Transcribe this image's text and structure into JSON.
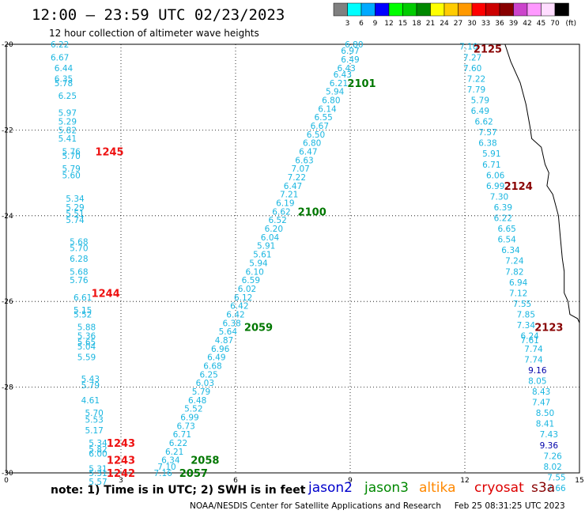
{
  "header": {
    "title": "12:00 — 23:59 UTC 02/23/2023",
    "subtitle": "12 hour collection of altimeter wave heights"
  },
  "colorbar": {
    "unit": "(ft)",
    "ticks": [
      "3",
      "6",
      "9",
      "12",
      "15",
      "18",
      "21",
      "24",
      "27",
      "30",
      "33",
      "36",
      "39",
      "42",
      "45",
      "70"
    ],
    "colors": [
      "#808080",
      "#00ffff",
      "#00aaff",
      "#0000ff",
      "#00ff00",
      "#00cc00",
      "#008800",
      "#ffff00",
      "#ffcc00",
      "#ff9900",
      "#ff0000",
      "#cc0000",
      "#880000",
      "#cc44cc",
      "#ff99ff",
      "#ffddff",
      "#000000"
    ]
  },
  "legend": {
    "note": "note:  1)  Time is in UTC;  2)  SWH is in feet",
    "satellites": [
      {
        "name": "jason2",
        "color": "#0000cc"
      },
      {
        "name": "jason3",
        "color": "#008800"
      },
      {
        "name": "altika",
        "color": "#ff8800"
      },
      {
        "name": "cryosat",
        "color": "#dd0000"
      },
      {
        "name": "s3a",
        "color": "#880000"
      }
    ]
  },
  "footer": {
    "credit": "NOAA/NESDIS Center for Satellite Applications and Research",
    "timestamp": "Feb 25 08:31:25 UTC 2023"
  },
  "chart_data": {
    "type": "scatter",
    "xlim": [
      0,
      15
    ],
    "ylim": [
      -30,
      -20
    ],
    "x_ticks": [
      "0",
      "3",
      "6",
      "9",
      "12",
      "15"
    ],
    "y_ticks": [
      "-20",
      "-22",
      "-24",
      "-26",
      "-28",
      "-30"
    ],
    "grid": true,
    "series": [
      {
        "name": "cryosat",
        "label_color": "#ee1111",
        "passes": [
          {
            "x": 2.7,
            "y": -22.5,
            "time": "1245"
          },
          {
            "x": 2.6,
            "y": -25.8,
            "time": "1244"
          },
          {
            "x": 3.0,
            "y": -29.3,
            "time": "1243"
          },
          {
            "x": 3.0,
            "y": -29.7,
            "time": "1243"
          },
          {
            "x": 3.0,
            "y": -30.0,
            "time": "1242"
          }
        ],
        "points": [
          {
            "x": 1.4,
            "y": -20.0,
            "v": "6.22"
          },
          {
            "x": 1.4,
            "y": -20.3,
            "v": "6.67"
          },
          {
            "x": 1.5,
            "y": -20.55,
            "v": "6.44"
          },
          {
            "x": 1.5,
            "y": -20.8,
            "v": "6.35"
          },
          {
            "x": 1.5,
            "y": -20.9,
            "v": "5.78"
          },
          {
            "x": 1.6,
            "y": -21.2,
            "v": "6.25"
          },
          {
            "x": 1.6,
            "y": -21.6,
            "v": "5.97"
          },
          {
            "x": 1.6,
            "y": -21.8,
            "v": "5.29"
          },
          {
            "x": 1.6,
            "y": -22.0,
            "v": "5.82"
          },
          {
            "x": 1.6,
            "y": -22.2,
            "v": "5.41"
          },
          {
            "x": 1.7,
            "y": -22.5,
            "v": "5.76"
          },
          {
            "x": 1.7,
            "y": -22.6,
            "v": "5.70"
          },
          {
            "x": 1.7,
            "y": -22.9,
            "v": "5.79"
          },
          {
            "x": 1.7,
            "y": -23.05,
            "v": "5.60"
          },
          {
            "x": 1.8,
            "y": -23.6,
            "v": "5.34"
          },
          {
            "x": 1.8,
            "y": -23.8,
            "v": "5.29"
          },
          {
            "x": 1.8,
            "y": -23.95,
            "v": "5.51"
          },
          {
            "x": 1.8,
            "y": -24.1,
            "v": "5.74"
          },
          {
            "x": 1.9,
            "y": -24.6,
            "v": "5.68"
          },
          {
            "x": 1.9,
            "y": -24.75,
            "v": "5.70"
          },
          {
            "x": 1.9,
            "y": -25.0,
            "v": "6.28"
          },
          {
            "x": 1.9,
            "y": -25.3,
            "v": "5.68"
          },
          {
            "x": 1.9,
            "y": -25.5,
            "v": "5.76"
          },
          {
            "x": 2.0,
            "y": -25.9,
            "v": "6.61"
          },
          {
            "x": 2.0,
            "y": -26.2,
            "v": "5.15"
          },
          {
            "x": 2.0,
            "y": -26.3,
            "v": "5.52"
          },
          {
            "x": 2.1,
            "y": -26.6,
            "v": "5.88"
          },
          {
            "x": 2.1,
            "y": -26.8,
            "v": "5.36"
          },
          {
            "x": 2.1,
            "y": -26.95,
            "v": "5.65"
          },
          {
            "x": 2.1,
            "y": -27.05,
            "v": "5.04"
          },
          {
            "x": 2.1,
            "y": -27.3,
            "v": "5.59"
          },
          {
            "x": 2.2,
            "y": -27.8,
            "v": "5.43"
          },
          {
            "x": 2.2,
            "y": -27.95,
            "v": "5.79"
          },
          {
            "x": 2.2,
            "y": -28.3,
            "v": "4.61"
          },
          {
            "x": 2.3,
            "y": -28.6,
            "v": "5.70"
          },
          {
            "x": 2.3,
            "y": -28.75,
            "v": "5.53"
          },
          {
            "x": 2.3,
            "y": -29.0,
            "v": "5.17"
          },
          {
            "x": 2.4,
            "y": -29.3,
            "v": "5.34"
          },
          {
            "x": 2.4,
            "y": -29.45,
            "v": "5.82"
          },
          {
            "x": 2.4,
            "y": -29.55,
            "v": "6.00"
          },
          {
            "x": 2.4,
            "y": -29.9,
            "v": "5.31"
          },
          {
            "x": 2.4,
            "y": -30.0,
            "v": "5.31"
          },
          {
            "x": 2.4,
            "y": -30.2,
            "v": "5.57"
          }
        ]
      },
      {
        "name": "jason3",
        "label_color": "#007700",
        "passes": [
          {
            "x": 9.3,
            "y": -20.9,
            "time": "2101"
          },
          {
            "x": 8.0,
            "y": -23.9,
            "time": "2100"
          },
          {
            "x": 6.6,
            "y": -26.6,
            "time": "2059"
          },
          {
            "x": 5.2,
            "y": -29.7,
            "time": "2058"
          },
          {
            "x": 4.9,
            "y": -30.0,
            "time": "2057"
          }
        ],
        "points": [
          {
            "x": 9.1,
            "y": -20.0,
            "v": "6.80"
          },
          {
            "x": 9.0,
            "y": -20.15,
            "v": "6.97"
          },
          {
            "x": 9.0,
            "y": -20.35,
            "v": "6.49"
          },
          {
            "x": 8.9,
            "y": -20.55,
            "v": "6.43"
          },
          {
            "x": 8.8,
            "y": -20.7,
            "v": "6.43"
          },
          {
            "x": 8.7,
            "y": -20.9,
            "v": "6.21"
          },
          {
            "x": 8.6,
            "y": -21.1,
            "v": "5.94"
          },
          {
            "x": 8.5,
            "y": -21.3,
            "v": "6.80"
          },
          {
            "x": 8.4,
            "y": -21.5,
            "v": "6.14"
          },
          {
            "x": 8.3,
            "y": -21.7,
            "v": "6.55"
          },
          {
            "x": 8.2,
            "y": -21.9,
            "v": "6.67"
          },
          {
            "x": 8.1,
            "y": -22.1,
            "v": "6.50"
          },
          {
            "x": 8.0,
            "y": -22.3,
            "v": "6.80"
          },
          {
            "x": 7.9,
            "y": -22.5,
            "v": "6.47"
          },
          {
            "x": 7.8,
            "y": -22.7,
            "v": "6.63"
          },
          {
            "x": 7.7,
            "y": -22.9,
            "v": "7.07"
          },
          {
            "x": 7.6,
            "y": -23.1,
            "v": "7.22"
          },
          {
            "x": 7.5,
            "y": -23.3,
            "v": "6.47"
          },
          {
            "x": 7.4,
            "y": -23.5,
            "v": "7.21"
          },
          {
            "x": 7.3,
            "y": -23.7,
            "v": "6.19"
          },
          {
            "x": 7.2,
            "y": -23.9,
            "v": "6.62"
          },
          {
            "x": 7.1,
            "y": -24.1,
            "v": "6.52"
          },
          {
            "x": 7.0,
            "y": -24.3,
            "v": "6.20"
          },
          {
            "x": 6.9,
            "y": -24.5,
            "v": "6.04"
          },
          {
            "x": 6.8,
            "y": -24.7,
            "v": "5.91"
          },
          {
            "x": 6.7,
            "y": -24.9,
            "v": "5.61"
          },
          {
            "x": 6.6,
            "y": -25.1,
            "v": "5.94"
          },
          {
            "x": 6.5,
            "y": -25.3,
            "v": "6.10"
          },
          {
            "x": 6.4,
            "y": -25.5,
            "v": "6.59"
          },
          {
            "x": 6.3,
            "y": -25.7,
            "v": "6.02"
          },
          {
            "x": 6.2,
            "y": -25.9,
            "v": "6.12"
          },
          {
            "x": 6.1,
            "y": -26.1,
            "v": "6.42"
          },
          {
            "x": 6.0,
            "y": -26.3,
            "v": "6.42"
          },
          {
            "x": 5.9,
            "y": -26.5,
            "v": "6.38"
          },
          {
            "x": 5.8,
            "y": -26.7,
            "v": "5.64"
          },
          {
            "x": 5.7,
            "y": -26.9,
            "v": "4.87"
          },
          {
            "x": 5.6,
            "y": -27.1,
            "v": "6.96"
          },
          {
            "x": 5.5,
            "y": -27.3,
            "v": "6.49"
          },
          {
            "x": 5.4,
            "y": -27.5,
            "v": "6.68"
          },
          {
            "x": 5.3,
            "y": -27.7,
            "v": "6.25"
          },
          {
            "x": 5.2,
            "y": -27.9,
            "v": "6.03"
          },
          {
            "x": 5.1,
            "y": -28.1,
            "v": "5.79"
          },
          {
            "x": 5.0,
            "y": -28.3,
            "v": "6.48"
          },
          {
            "x": 4.9,
            "y": -28.5,
            "v": "5.52"
          },
          {
            "x": 4.8,
            "y": -28.7,
            "v": "6.99"
          },
          {
            "x": 4.7,
            "y": -28.9,
            "v": "6.73"
          },
          {
            "x": 4.6,
            "y": -29.1,
            "v": "6.71"
          },
          {
            "x": 4.5,
            "y": -29.3,
            "v": "6.22"
          },
          {
            "x": 4.4,
            "y": -29.5,
            "v": "6.21"
          },
          {
            "x": 4.3,
            "y": -29.7,
            "v": "6.34"
          },
          {
            "x": 4.2,
            "y": -29.85,
            "v": "7.10"
          },
          {
            "x": 4.1,
            "y": -30.0,
            "v": "7.16"
          }
        ]
      },
      {
        "name": "s3a",
        "label_color": "#880000",
        "passes": [
          {
            "x": 12.6,
            "y": -20.1,
            "time": "2125"
          },
          {
            "x": 13.4,
            "y": -23.3,
            "time": "2124"
          },
          {
            "x": 14.2,
            "y": -26.6,
            "time": "2123"
          }
        ],
        "points": [
          {
            "x": 12.1,
            "y": -20.05,
            "v": "7.10"
          },
          {
            "x": 12.2,
            "y": -20.3,
            "v": "7.27"
          },
          {
            "x": 12.2,
            "y": -20.55,
            "v": "7.60"
          },
          {
            "x": 12.3,
            "y": -20.8,
            "v": "7.22"
          },
          {
            "x": 12.3,
            "y": -21.05,
            "v": "7.79"
          },
          {
            "x": 12.4,
            "y": -21.3,
            "v": "5.79"
          },
          {
            "x": 12.4,
            "y": -21.55,
            "v": "6.49"
          },
          {
            "x": 12.5,
            "y": -21.8,
            "v": "6.62"
          },
          {
            "x": 12.6,
            "y": -22.05,
            "v": "7.57"
          },
          {
            "x": 12.6,
            "y": -22.3,
            "v": "6.38"
          },
          {
            "x": 12.7,
            "y": -22.55,
            "v": "5.91"
          },
          {
            "x": 12.7,
            "y": -22.8,
            "v": "6.71"
          },
          {
            "x": 12.8,
            "y": -23.05,
            "v": "6.06"
          },
          {
            "x": 12.8,
            "y": -23.3,
            "v": "6.99"
          },
          {
            "x": 12.9,
            "y": -23.55,
            "v": "7.30"
          },
          {
            "x": 13.0,
            "y": -23.8,
            "v": "6.39"
          },
          {
            "x": 13.0,
            "y": -24.05,
            "v": "6.22"
          },
          {
            "x": 13.1,
            "y": -24.3,
            "v": "6.65"
          },
          {
            "x": 13.1,
            "y": -24.55,
            "v": "6.54"
          },
          {
            "x": 13.2,
            "y": -24.8,
            "v": "6.34"
          },
          {
            "x": 13.3,
            "y": -25.05,
            "v": "7.24"
          },
          {
            "x": 13.3,
            "y": -25.3,
            "v": "7.82"
          },
          {
            "x": 13.4,
            "y": -25.55,
            "v": "6.94"
          },
          {
            "x": 13.4,
            "y": -25.8,
            "v": "7.12"
          },
          {
            "x": 13.5,
            "y": -26.05,
            "v": "7.55"
          },
          {
            "x": 13.6,
            "y": -26.3,
            "v": "7.85"
          },
          {
            "x": 13.6,
            "y": -26.55,
            "v": "7.34"
          },
          {
            "x": 13.7,
            "y": -26.8,
            "v": "6.24"
          },
          {
            "x": 13.7,
            "y": -26.9,
            "v": "7.61"
          },
          {
            "x": 13.8,
            "y": -27.1,
            "v": "7.74"
          },
          {
            "x": 13.8,
            "y": -27.35,
            "v": "7.74"
          },
          {
            "x": 13.9,
            "y": -27.6,
            "v": "9.16",
            "c": "#0000aa"
          },
          {
            "x": 13.9,
            "y": -27.85,
            "v": "8.05"
          },
          {
            "x": 14.0,
            "y": -28.1,
            "v": "8.43"
          },
          {
            "x": 14.0,
            "y": -28.35,
            "v": "7.47"
          },
          {
            "x": 14.1,
            "y": -28.6,
            "v": "8.50"
          },
          {
            "x": 14.1,
            "y": -28.85,
            "v": "8.41"
          },
          {
            "x": 14.2,
            "y": -29.1,
            "v": "7.43"
          },
          {
            "x": 14.2,
            "y": -29.35,
            "v": "9.36",
            "c": "#0000aa"
          },
          {
            "x": 14.3,
            "y": -29.6,
            "v": "7.26"
          },
          {
            "x": 14.3,
            "y": -29.85,
            "v": "8.02"
          },
          {
            "x": 14.4,
            "y": -30.1,
            "v": "7.55"
          },
          {
            "x": 14.4,
            "y": -30.35,
            "v": "7.66"
          }
        ]
      }
    ],
    "coastline": [
      [
        13.05,
        -20.0
      ],
      [
        13.2,
        -20.4
      ],
      [
        13.45,
        -20.9
      ],
      [
        13.6,
        -21.4
      ],
      [
        13.7,
        -21.9
      ],
      [
        13.75,
        -22.2
      ],
      [
        14.0,
        -22.4
      ],
      [
        14.1,
        -22.8
      ],
      [
        14.2,
        -23.0
      ],
      [
        14.15,
        -23.3
      ],
      [
        14.3,
        -23.5
      ],
      [
        14.45,
        -24.0
      ],
      [
        14.5,
        -24.5
      ],
      [
        14.55,
        -25.0
      ],
      [
        14.6,
        -25.3
      ],
      [
        14.6,
        -25.8
      ],
      [
        14.7,
        -26.0
      ],
      [
        14.75,
        -26.3
      ],
      [
        14.95,
        -26.4
      ],
      [
        15.0,
        -26.5
      ]
    ]
  }
}
